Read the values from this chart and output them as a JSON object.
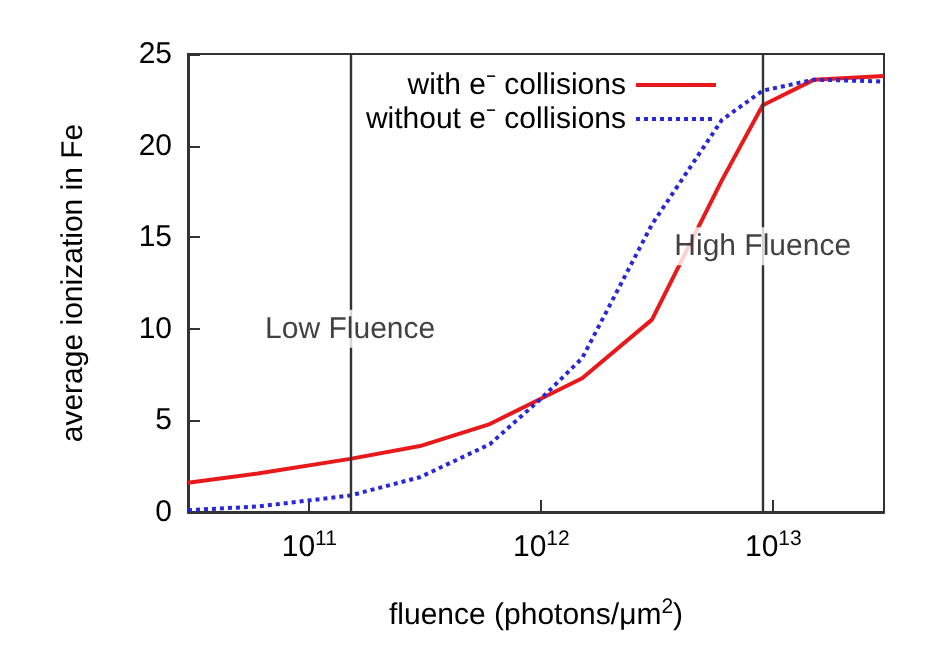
{
  "chart_data": {
    "type": "line",
    "xlabel": "fluence (photons/μm$^{2}$)",
    "ylabel": "average ionization in Fe",
    "log": "x",
    "xlim": [
      30000000000.0,
      30000000000000.0
    ],
    "xticks": [
      {
        "value": 100000000000.0,
        "label": "10$^{11}$"
      },
      {
        "value": 1000000000000.0,
        "label": "10$^{12}$"
      },
      {
        "value": 10000000000000.0,
        "label": "10$^{13}$"
      }
    ],
    "ylim": [
      0,
      25
    ],
    "yticks": [
      0,
      5,
      10,
      15,
      20,
      25
    ],
    "grid": false,
    "legend": "top right",
    "marker": "none",
    "x": [
      30000000000.0,
      60000000000.0,
      150000000000.0,
      300000000000.0,
      600000000000.0,
      1000000000000.0,
      1500000000000.0,
      3000000000000.0,
      6000000000000.0,
      9000000000000.0,
      15000000000000.0,
      30000000000000.0
    ],
    "series": [
      {
        "name": "with e⁻ collisions",
        "color": "#e8191b",
        "line_style": "solid",
        "values": [
          1.6,
          2.1,
          2.9,
          3.6,
          4.8,
          6.2,
          7.3,
          10.5,
          18.1,
          22.2,
          23.6,
          23.8
        ]
      },
      {
        "name": "without e⁻ collisions",
        "color": "#2828d8",
        "line_style": "dotted",
        "values": [
          0.1,
          0.3,
          0.9,
          1.9,
          3.7,
          6.2,
          8.4,
          15.7,
          21.4,
          23.0,
          23.6,
          23.5
        ]
      }
    ],
    "ref_lines": [
      {
        "axis": "x",
        "value": 150000000000.0,
        "color": "#333333"
      },
      {
        "axis": "x",
        "value": 9000000000000.0,
        "color": "#333333"
      }
    ],
    "annotations": [
      {
        "text": "Low Fluence",
        "x": 150000000000.0,
        "y": 10
      },
      {
        "text": "High Fluence",
        "x": 9000000000000.0,
        "y": 14.5
      }
    ]
  }
}
